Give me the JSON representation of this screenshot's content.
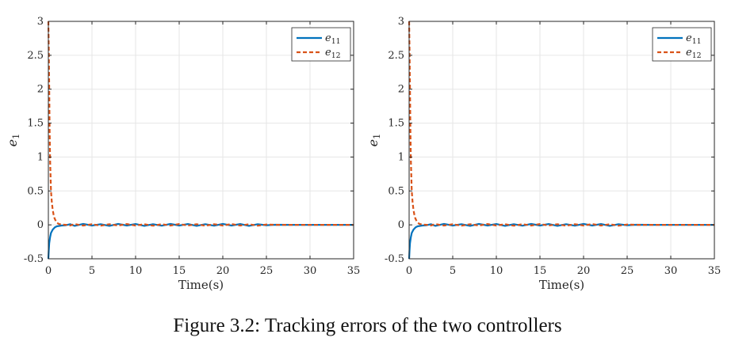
{
  "caption": "Figure 3.2: Tracking errors of the two controllers",
  "colors": {
    "e11": "#0072BD",
    "e12": "#D95319",
    "grid": "#e6e6e6",
    "axis": "#262626"
  },
  "chart_data": [
    {
      "type": "line",
      "xlabel": "Time(s)",
      "ylabel_base": "e",
      "ylabel_sub": "1",
      "xlim": [
        0,
        35
      ],
      "ylim": [
        -0.5,
        3
      ],
      "xticks": [
        "0",
        "5",
        "10",
        "15",
        "20",
        "25",
        "30",
        "35"
      ],
      "yticks": [
        "-0.5",
        "0",
        "0.5",
        "1",
        "1.5",
        "2",
        "2.5",
        "3"
      ],
      "grid": true,
      "legend_position": "top-right",
      "series": [
        {
          "name": "e11",
          "label_base": "e",
          "label_sub": "11",
          "style": "solid",
          "x": [
            0,
            0.05,
            0.1,
            0.2,
            0.3,
            0.5,
            0.75,
            1.0,
            1.5,
            2.0,
            2.5,
            3,
            4,
            5,
            6,
            7,
            8,
            9,
            10,
            11,
            12,
            13,
            14,
            15,
            16,
            17,
            18,
            19,
            20,
            21,
            22,
            23,
            24,
            25,
            26,
            28,
            30,
            32,
            35
          ],
          "y": [
            -0.5,
            -0.38,
            -0.27,
            -0.18,
            -0.12,
            -0.07,
            -0.035,
            -0.02,
            -0.01,
            -0.005,
            0.01,
            -0.015,
            0.015,
            -0.01,
            0.01,
            -0.015,
            0.015,
            -0.01,
            0.012,
            -0.015,
            0.01,
            -0.012,
            0.015,
            -0.01,
            0.012,
            -0.015,
            0.01,
            -0.012,
            0.015,
            -0.01,
            0.012,
            -0.015,
            0.01,
            -0.005,
            0.002,
            0.0,
            0.0,
            0.0,
            0.0
          ]
        },
        {
          "name": "e12",
          "label_base": "e",
          "label_sub": "12",
          "style": "dashed",
          "x": [
            0,
            0.05,
            0.1,
            0.15,
            0.2,
            0.3,
            0.4,
            0.5,
            0.6,
            0.7,
            0.8,
            0.9,
            1.0,
            1.2,
            1.5,
            2.0,
            2.5,
            3,
            4,
            5,
            6,
            7,
            8,
            9,
            10,
            11,
            12,
            13,
            14,
            15,
            16,
            17,
            18,
            19,
            20,
            21,
            22,
            23,
            24,
            25,
            26,
            28,
            30,
            32,
            35
          ],
          "y": [
            3.0,
            2.6,
            2.0,
            1.4,
            0.95,
            0.5,
            0.33,
            0.22,
            0.15,
            0.1,
            0.07,
            0.05,
            0.03,
            0.015,
            0.005,
            0.0,
            -0.01,
            0.012,
            -0.01,
            0.01,
            -0.012,
            0.01,
            -0.01,
            0.012,
            -0.01,
            0.01,
            -0.012,
            0.01,
            -0.01,
            0.012,
            -0.01,
            0.01,
            -0.012,
            0.01,
            -0.01,
            0.012,
            -0.01,
            0.01,
            -0.012,
            0.005,
            0.0,
            0.0,
            0.0,
            0.0,
            0.0
          ]
        }
      ]
    },
    {
      "type": "line",
      "xlabel": "Time(s)",
      "ylabel_base": "e",
      "ylabel_sub": "1",
      "xlim": [
        0,
        35
      ],
      "ylim": [
        -0.5,
        3
      ],
      "xticks": [
        "0",
        "5",
        "10",
        "15",
        "20",
        "25",
        "30",
        "35"
      ],
      "yticks": [
        "-0.5",
        "0",
        "0.5",
        "1",
        "1.5",
        "2",
        "2.5",
        "3"
      ],
      "grid": true,
      "legend_position": "top-right",
      "series": [
        {
          "name": "e11",
          "label_base": "e",
          "label_sub": "11",
          "style": "solid",
          "x": [
            0,
            0.05,
            0.1,
            0.2,
            0.3,
            0.5,
            0.75,
            1.0,
            1.5,
            2.0,
            2.5,
            3,
            4,
            5,
            6,
            7,
            8,
            9,
            10,
            11,
            12,
            13,
            14,
            15,
            16,
            17,
            18,
            19,
            20,
            21,
            22,
            23,
            24,
            25,
            26,
            28,
            30,
            32,
            35
          ],
          "y": [
            -0.5,
            -0.38,
            -0.27,
            -0.18,
            -0.12,
            -0.07,
            -0.035,
            -0.02,
            -0.01,
            -0.005,
            0.01,
            -0.015,
            0.015,
            -0.01,
            0.01,
            -0.015,
            0.015,
            -0.01,
            0.012,
            -0.015,
            0.01,
            -0.012,
            0.015,
            -0.01,
            0.012,
            -0.015,
            0.01,
            -0.012,
            0.015,
            -0.01,
            0.012,
            -0.015,
            0.01,
            -0.005,
            0.002,
            0.0,
            0.0,
            0.0,
            0.0
          ]
        },
        {
          "name": "e12",
          "label_base": "e",
          "label_sub": "12",
          "style": "dashed",
          "x": [
            0,
            0.05,
            0.1,
            0.15,
            0.2,
            0.3,
            0.4,
            0.5,
            0.6,
            0.7,
            0.8,
            0.9,
            1.0,
            1.2,
            1.5,
            2.0,
            2.5,
            3,
            4,
            5,
            6,
            7,
            8,
            9,
            10,
            11,
            12,
            13,
            14,
            15,
            16,
            17,
            18,
            19,
            20,
            21,
            22,
            23,
            24,
            25,
            26,
            28,
            30,
            32,
            35
          ],
          "y": [
            3.0,
            2.6,
            2.0,
            1.4,
            0.95,
            0.5,
            0.33,
            0.22,
            0.15,
            0.1,
            0.07,
            0.05,
            0.03,
            0.015,
            0.005,
            0.0,
            -0.01,
            0.012,
            -0.01,
            0.01,
            -0.012,
            0.01,
            -0.01,
            0.012,
            -0.01,
            0.01,
            -0.012,
            0.01,
            -0.01,
            0.012,
            -0.01,
            0.01,
            -0.012,
            0.01,
            -0.01,
            0.012,
            -0.01,
            0.01,
            -0.012,
            0.005,
            0.0,
            0.0,
            0.0,
            0.0,
            0.0
          ]
        }
      ]
    }
  ]
}
